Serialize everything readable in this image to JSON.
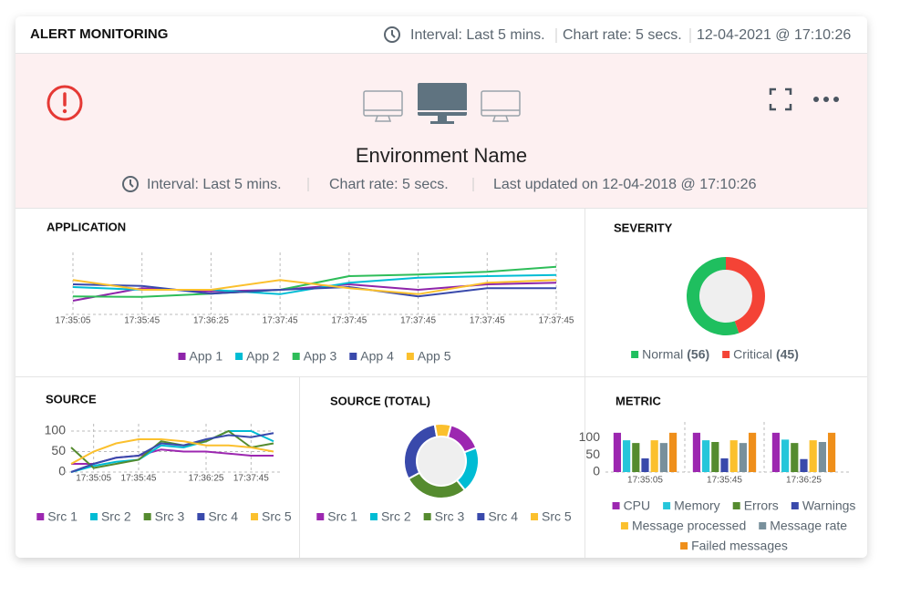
{
  "header": {
    "title": "ALERT MONITORING",
    "interval": "Interval: Last 5 mins.",
    "chart_rate": "Chart rate: 5 secs.",
    "timestamp": "12-04-2021 @ 17:10:26"
  },
  "banner": {
    "title": "Environment Name",
    "interval": "Interval: Last 5 mins.",
    "chart_rate": "Chart rate: 5 secs.",
    "last_updated": "Last updated on 12-04-2018 @ 17:10:26"
  },
  "chart_data": [
    {
      "type": "line",
      "title": "APPLICATION",
      "categories": [
        "17:35:05",
        "17:35:45",
        "17:36:25",
        "17:37:45",
        "17:37:45",
        "17:37:45",
        "17:37:45",
        "17:37:45"
      ],
      "ylim": [
        0,
        100
      ],
      "grid": true,
      "series": [
        {
          "name": "App 1",
          "color": "#8e24aa",
          "values": [
            25,
            48,
            42,
            45,
            55,
            45,
            55,
            58
          ]
        },
        {
          "name": "App 2",
          "color": "#00bcd4",
          "values": [
            50,
            45,
            45,
            37,
            58,
            67,
            70,
            72
          ]
        },
        {
          "name": "App 3",
          "color": "#2ebd59",
          "values": [
            33,
            32,
            38,
            45,
            70,
            73,
            78,
            87
          ]
        },
        {
          "name": "App 4",
          "color": "#3949ab",
          "values": [
            55,
            52,
            38,
            45,
            50,
            33,
            48,
            48
          ]
        },
        {
          "name": "App 5",
          "color": "#fbc02d",
          "values": [
            63,
            45,
            45,
            63,
            48,
            37,
            58,
            63
          ]
        }
      ]
    },
    {
      "type": "donut",
      "title": "SEVERITY",
      "categories": [
        "Normal",
        "Critical"
      ],
      "values": [
        56,
        45
      ],
      "value_labels": [
        "(56)",
        "(45)"
      ],
      "colors": [
        "#1fbf5f",
        "#f44336"
      ]
    },
    {
      "type": "line",
      "title": "SOURCE",
      "categories": [
        null,
        "17:35:05",
        null,
        "17:35:45",
        null,
        null,
        "17:36:25",
        null,
        "17:37:45",
        null
      ],
      "ylim": [
        0,
        100
      ],
      "yticks": [
        0,
        50,
        100
      ],
      "grid": true,
      "series": [
        {
          "name": "Src 1",
          "color": "#9c27b0",
          "values": [
            20,
            20,
            35,
            40,
            55,
            50,
            50,
            45,
            40,
            40
          ]
        },
        {
          "name": "Src 2",
          "color": "#00bcd4",
          "values": [
            0,
            15,
            25,
            30,
            65,
            60,
            75,
            100,
            100,
            75
          ]
        },
        {
          "name": "Src 3",
          "color": "#558b2f",
          "values": [
            60,
            10,
            20,
            30,
            75,
            65,
            75,
            100,
            60,
            70
          ]
        },
        {
          "name": "Src 4",
          "color": "#3949ab",
          "values": [
            0,
            20,
            35,
            40,
            70,
            65,
            80,
            90,
            85,
            95
          ]
        },
        {
          "name": "Src 5",
          "color": "#fbc02d",
          "values": [
            20,
            50,
            70,
            80,
            80,
            75,
            65,
            65,
            60,
            50
          ]
        }
      ]
    },
    {
      "type": "donut",
      "title": "SOURCE (TOTAL)",
      "categories": [
        "Src 1",
        "Src 2",
        "Src 3",
        "Src 4",
        "Src 5"
      ],
      "values": [
        15,
        20,
        28,
        30,
        7
      ],
      "colors": [
        "#9c27b0",
        "#00bcd4",
        "#558b2f",
        "#3949ab",
        "#fbc02d"
      ]
    },
    {
      "type": "bar",
      "title": "METRIC",
      "categories": [
        "17:35:05",
        "17:35:45",
        "17:36:25"
      ],
      "ylim": [
        0,
        120
      ],
      "yticks": [
        0,
        50,
        100
      ],
      "series": [
        {
          "name": "CPU",
          "color": "#9c27b0",
          "values": [
            115,
            115,
            115
          ]
        },
        {
          "name": "Memory",
          "color": "#26c6da",
          "values": [
            93,
            93,
            95
          ]
        },
        {
          "name": "Errors",
          "color": "#558b2f",
          "values": [
            85,
            88,
            85
          ]
        },
        {
          "name": "Warnings",
          "color": "#3949ab",
          "values": [
            40,
            40,
            38
          ]
        },
        {
          "name": "Message processed",
          "color": "#fbc02d",
          "values": [
            93,
            93,
            93
          ]
        },
        {
          "name": "Message rate",
          "color": "#78909c",
          "values": [
            85,
            85,
            88
          ]
        },
        {
          "name": "Failed messages",
          "color": "#ef8f1a",
          "values": [
            115,
            115,
            115
          ]
        }
      ]
    }
  ]
}
